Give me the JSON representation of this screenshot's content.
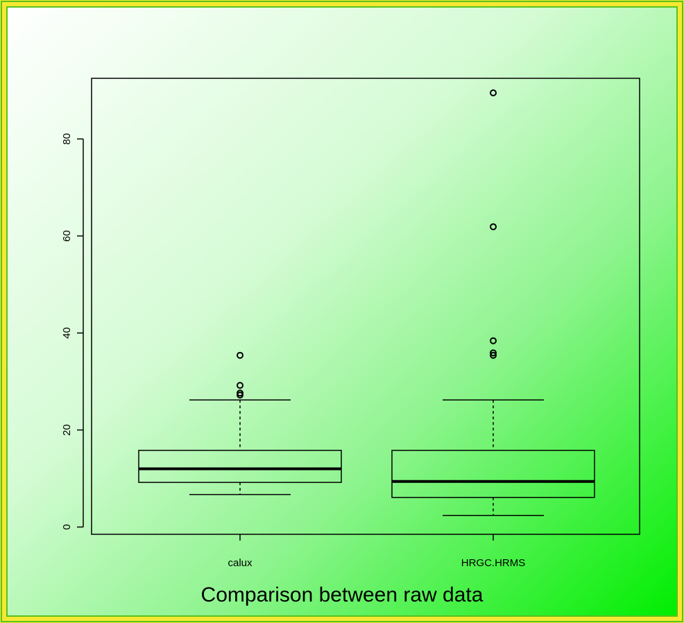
{
  "chart_data": {
    "type": "boxplot",
    "title": "Comparison between raw data",
    "xlabel": "",
    "ylabel": "",
    "ylim": [
      -1.5,
      92.5
    ],
    "y_ticks": [
      0,
      20,
      40,
      60,
      80
    ],
    "grid": false,
    "legend": "none",
    "categories": [
      "calux",
      "HRGC.HRMS"
    ],
    "boxes": [
      {
        "category": "calux",
        "whisker_low": 6.7,
        "q1": 9.2,
        "median": 12.0,
        "q3": 15.8,
        "whisker_high": 26.2,
        "outliers": [
          27.2,
          27.6,
          29.2,
          35.4
        ]
      },
      {
        "category": "HRGC.HRMS",
        "whisker_low": 2.4,
        "q1": 6.1,
        "median": 9.4,
        "q3": 15.8,
        "whisker_high": 26.2,
        "outliers": [
          35.4,
          35.9,
          38.4,
          61.9,
          89.5
        ]
      }
    ]
  },
  "colors": {
    "frame_outer": "#f6e832",
    "frame_border": "#58c21c",
    "gradient_start": "#ffffff",
    "gradient_end": "#00ee00",
    "ink": "#000000"
  }
}
